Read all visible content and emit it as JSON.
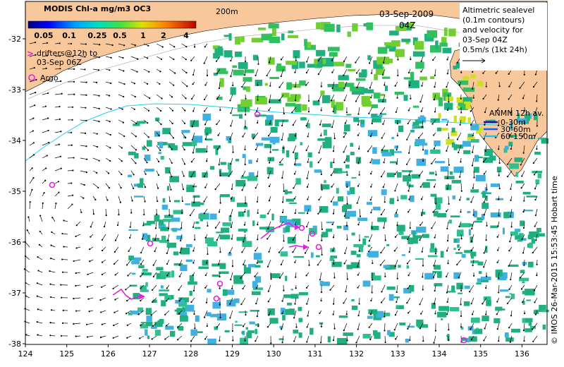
{
  "colorbar": {
    "title": "MODIS Chl-a mg/m3 OC3",
    "ticks": [
      "0.05",
      "0.1",
      "0.25",
      "0.5",
      "1",
      "2",
      "4"
    ]
  },
  "legend": {
    "drifters_line1": "drifters@12h to",
    "drifters_line2": "03-Sep 06Z",
    "argo": "Argo",
    "drifter_marker": ">"
  },
  "bathymetry_label": "200m",
  "date": {
    "day": "03-Sep-2009",
    "time": "04Z"
  },
  "altimetry_note": {
    "line1": "Altimetric sealevel",
    "line2": "(0.1m contours)",
    "line3": "and velocity for",
    "line4": "03-Sep 04Z",
    "line5": "0.5m/s (1kt 24h)"
  },
  "anmn": {
    "title": "ANMN 12h av.",
    "bins": [
      {
        "label": "0-30m",
        "color": "#1010c0"
      },
      {
        "label": "30-60m",
        "color": "#1060ff"
      },
      {
        "label": "60-150m",
        "color": "#20c0f0"
      }
    ]
  },
  "credit": "© IMOS 26-Mar-2015 15:53:45 Hobart time",
  "x_ticks": [
    "124",
    "125",
    "126",
    "127",
    "128",
    "129",
    "130",
    "131",
    "132",
    "133",
    "134",
    "135",
    "136"
  ],
  "y_ticks": [
    "-32",
    "-33",
    "-34",
    "-35",
    "-36",
    "-37",
    "-38"
  ],
  "colors": {
    "land": "#f8c89c",
    "chl_low": "#40b0e0",
    "chl_mid": "#20b080",
    "chl_high": "#70d030",
    "chl_max": "#d0e020",
    "drifter": "#e020e0",
    "sst_contour": "#20d0f0"
  }
}
